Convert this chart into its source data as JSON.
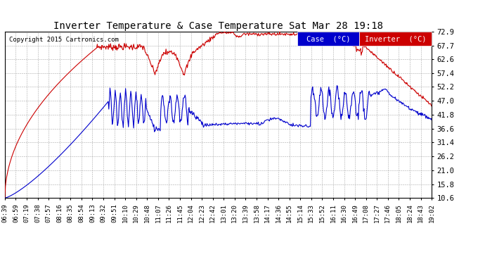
{
  "title": "Inverter Temperature & Case Temperature Sat Mar 28 19:18",
  "copyright": "Copyright 2015 Cartronics.com",
  "yticks": [
    10.6,
    15.8,
    21.0,
    26.2,
    31.4,
    36.6,
    41.8,
    47.0,
    52.2,
    57.4,
    62.6,
    67.7,
    72.9
  ],
  "ylim": [
    10.6,
    72.9
  ],
  "bg_color": "#ffffff",
  "plot_bg_color": "#ffffff",
  "grid_color": "#aaaaaa",
  "case_color": "#0000cc",
  "inverter_color": "#cc0000",
  "legend_case_bg": "#0000cc",
  "legend_inverter_bg": "#cc0000",
  "xtick_labels": [
    "06:39",
    "06:59",
    "07:19",
    "07:38",
    "07:57",
    "08:16",
    "08:35",
    "08:54",
    "09:13",
    "09:32",
    "09:51",
    "10:10",
    "10:29",
    "10:48",
    "11:07",
    "11:26",
    "11:45",
    "12:04",
    "12:23",
    "12:42",
    "13:01",
    "13:20",
    "13:39",
    "13:58",
    "14:17",
    "14:36",
    "14:55",
    "15:14",
    "15:33",
    "15:52",
    "16:11",
    "16:30",
    "16:49",
    "17:08",
    "17:27",
    "17:46",
    "18:05",
    "18:24",
    "18:43",
    "19:02"
  ]
}
